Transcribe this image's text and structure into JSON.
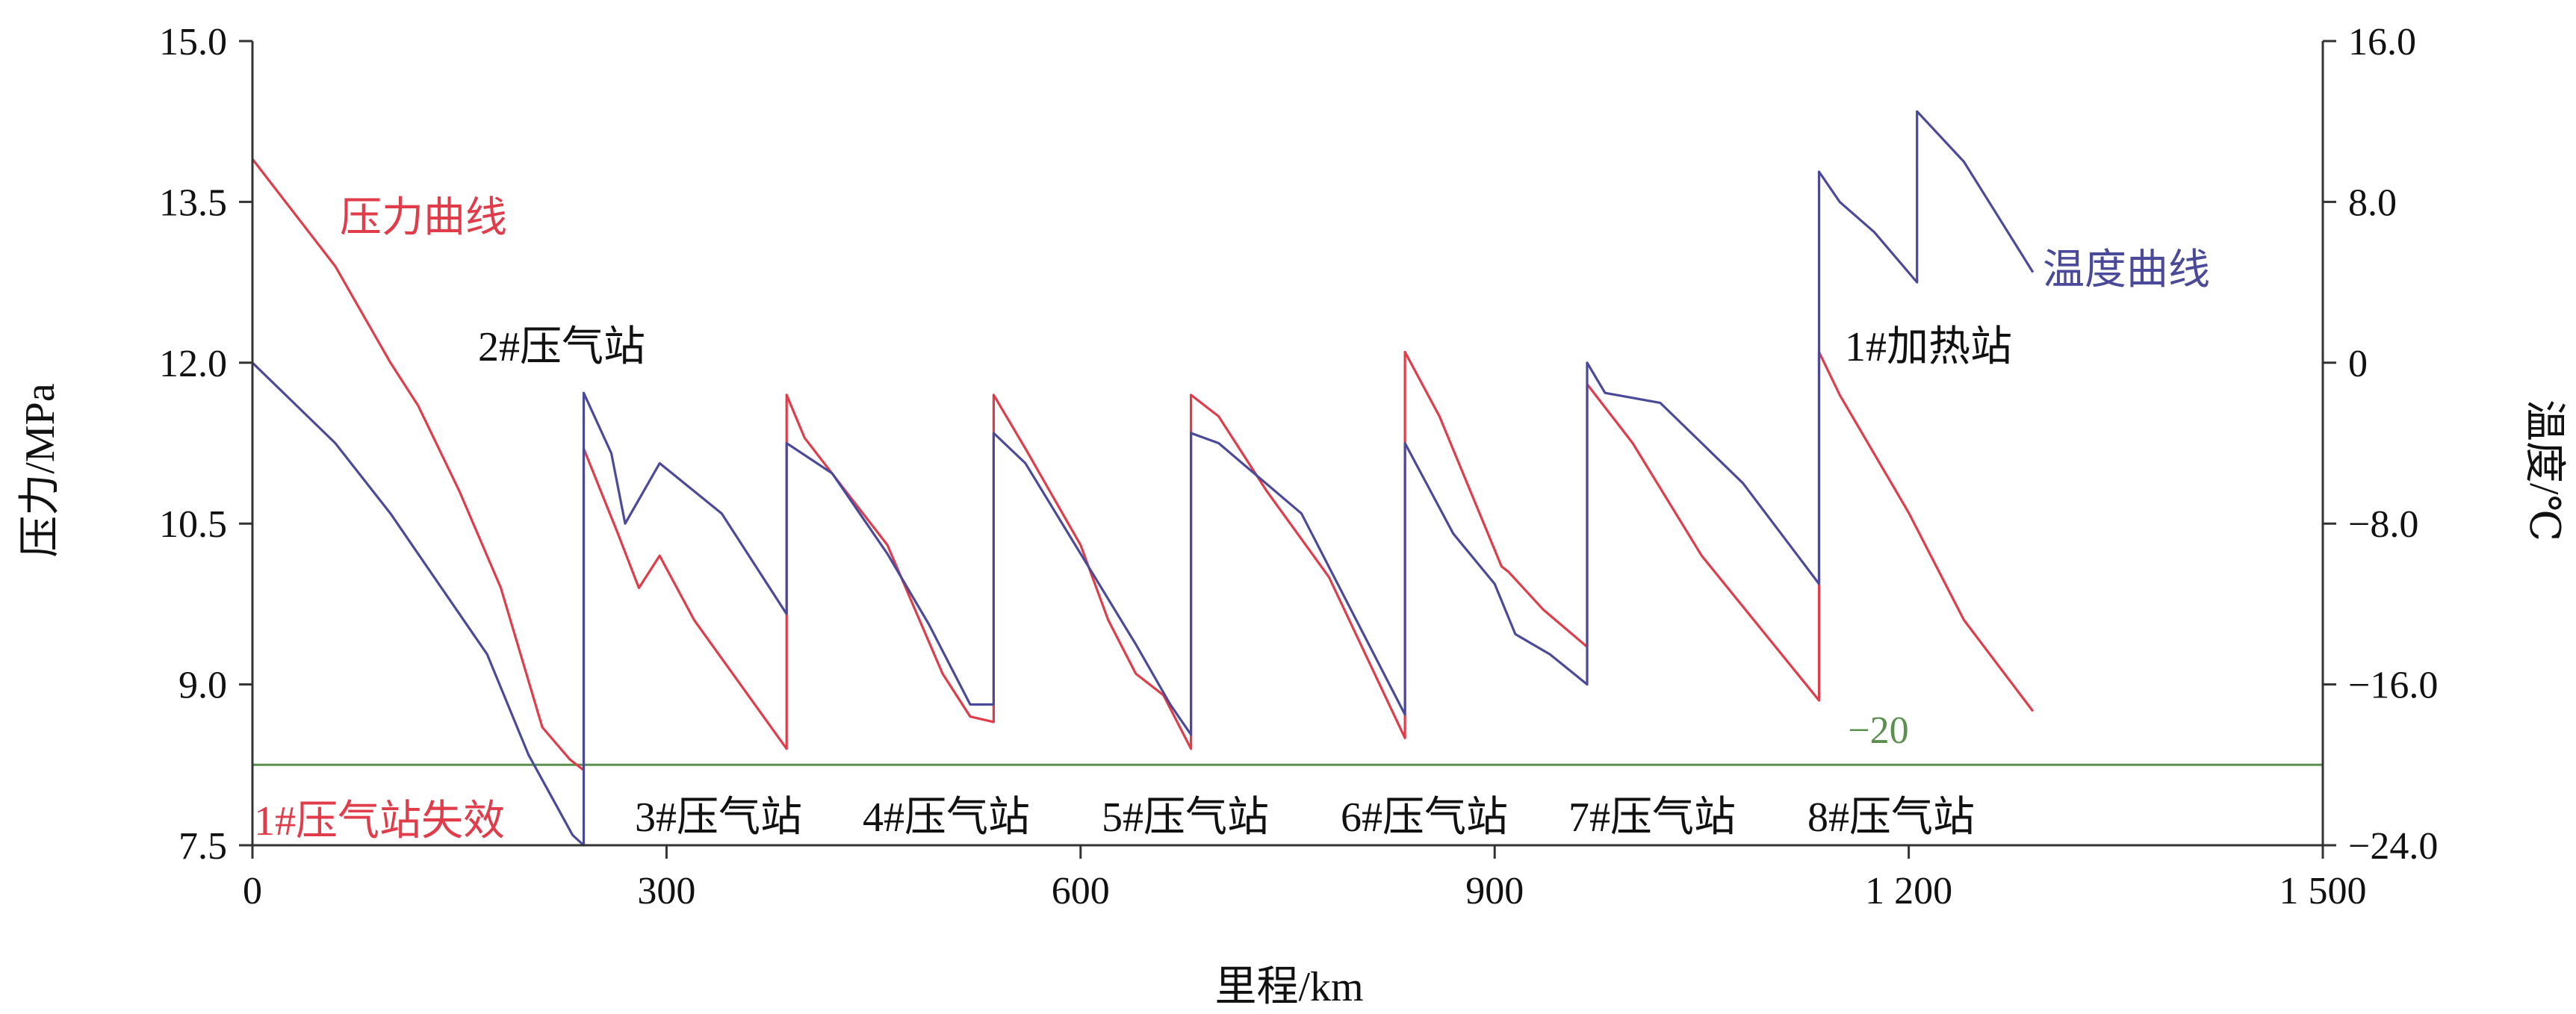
{
  "chart_data": {
    "type": "line",
    "xlabel": "里程/km",
    "ylabel_left": "压力/MPa",
    "ylabel_right": "温度/℃",
    "xlim": [
      0,
      1500
    ],
    "ylim_left": [
      7.5,
      15.0
    ],
    "ylim_right": [
      -24.0,
      16.0
    ],
    "x_ticks": [
      "0",
      "300",
      "600",
      "900",
      "1 200",
      "1 500"
    ],
    "y_left_ticks": [
      "7.5",
      "9.0",
      "10.5",
      "12.0",
      "13.5",
      "15.0"
    ],
    "y_right_ticks": [
      "−24.0",
      "−16.0",
      "−8.0",
      "0",
      "8.0",
      "16.0"
    ],
    "grid": false,
    "colors": {
      "pressure": "#e03c4a",
      "temperature": "#4b4a9a",
      "threshold": "#5a8f4e",
      "axis": "#333333"
    },
    "series": [
      {
        "name": "压力曲线",
        "axis": "left",
        "color": "#e03c4a",
        "x": [
          0,
          60,
          100,
          120,
          150,
          180,
          210,
          230,
          240,
          240,
          265,
          280,
          295,
          320,
          387,
          387,
          400,
          430,
          460,
          480,
          500,
          520,
          537,
          537,
          560,
          600,
          620,
          640,
          660,
          680,
          680,
          700,
          735,
          780,
          835,
          835,
          860,
          905,
          910,
          935,
          967,
          967,
          1000,
          1050,
          1135,
          1135,
          1150,
          1200,
          1240,
          1290
        ],
        "values": [
          13.9,
          12.9,
          12.0,
          11.6,
          10.8,
          9.9,
          8.6,
          8.3,
          8.2,
          11.2,
          10.4,
          9.9,
          10.2,
          9.6,
          8.4,
          11.7,
          11.3,
          10.8,
          10.3,
          9.7,
          9.1,
          8.7,
          8.65,
          11.7,
          11.2,
          10.3,
          9.6,
          9.1,
          8.9,
          8.4,
          11.7,
          11.5,
          10.8,
          10.0,
          8.5,
          12.1,
          11.5,
          10.1,
          10.05,
          9.7,
          9.35,
          11.8,
          11.25,
          10.2,
          8.85,
          12.1,
          11.7,
          10.6,
          9.6,
          8.75
        ]
      },
      {
        "name": "温度曲线",
        "axis": "right",
        "color": "#4b4a9a",
        "x": [
          0,
          60,
          100,
          130,
          170,
          200,
          220,
          232,
          240,
          240,
          260,
          270,
          295,
          340,
          387,
          387,
          420,
          460,
          490,
          520,
          537,
          537,
          560,
          600,
          640,
          665,
          680,
          680,
          700,
          760,
          835,
          835,
          870,
          900,
          915,
          940,
          967,
          967,
          980,
          1020,
          1080,
          1135,
          1135,
          1150,
          1175,
          1206,
          1206,
          1240,
          1290
        ],
        "values": [
          0,
          -4.0,
          -7.5,
          -10.5,
          -14.5,
          -19.5,
          -22.0,
          -23.5,
          -24.0,
          -1.5,
          -4.5,
          -8.0,
          -5.0,
          -7.5,
          -12.5,
          -4.0,
          -5.5,
          -9.5,
          -13.0,
          -17.0,
          -17.0,
          -3.5,
          -5.0,
          -9.5,
          -14.0,
          -17.0,
          -18.5,
          -3.5,
          -4.0,
          -7.5,
          -17.5,
          -4.0,
          -8.5,
          -11.0,
          -13.5,
          -14.5,
          -16.0,
          0.0,
          -1.5,
          -2.0,
          -6.0,
          -11.0,
          9.5,
          8.0,
          6.5,
          4.0,
          12.5,
          10.0,
          4.5
        ]
      }
    ],
    "threshold": {
      "axis": "right",
      "value": -20,
      "label": "−20",
      "color": "#5a8f4e"
    },
    "annotations": [
      {
        "id": "pressure-curve",
        "text": "压力曲线",
        "color": "#e03c4a"
      },
      {
        "id": "temperature-curve",
        "text": "温度曲线",
        "color": "#4b4a9a"
      },
      {
        "id": "station-2",
        "text": "2#压气站",
        "color": "#111111"
      },
      {
        "id": "heating-1",
        "text": "1#加热站",
        "color": "#111111"
      },
      {
        "id": "station-1-fail",
        "text": "1#压气站失效",
        "color": "#e03c4a"
      },
      {
        "id": "station-3",
        "text": "3#压气站",
        "color": "#111111"
      },
      {
        "id": "station-4",
        "text": "4#压气站",
        "color": "#111111"
      },
      {
        "id": "station-5",
        "text": "5#压气站",
        "color": "#111111"
      },
      {
        "id": "station-6",
        "text": "6#压气站",
        "color": "#111111"
      },
      {
        "id": "station-7",
        "text": "7#压气站",
        "color": "#111111"
      },
      {
        "id": "station-8",
        "text": "8#压气站",
        "color": "#111111"
      }
    ]
  }
}
